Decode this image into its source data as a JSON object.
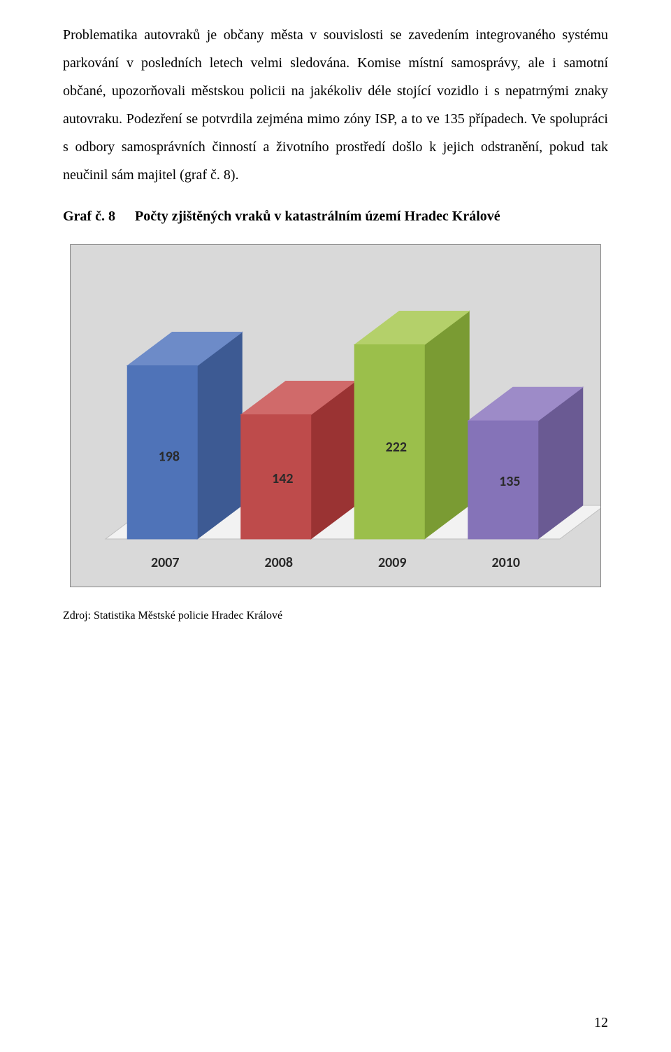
{
  "paragraph1": "Problematika autovraků je občany města v souvislosti se zavedením integrovaného systému parkování v posledních letech velmi sledována. Komise místní samosprávy, ale i samotní občané, upozorňovali městskou policii na jakékoliv déle stojící vozidlo i s nepatrnými znaky autovraku. Podezření se potvrdila zejména mimo zóny ISP, a to ve 135 případech. Ve spolupráci s odbory samosprávních činností a životního prostředí došlo k jejich odstranění, pokud tak neučinil sám majitel (graf č. 8).",
  "graf_label": "Graf č. 8",
  "chart_title": "Počty zjištěných vraků v katastrálním území Hradec Králové",
  "source_text": "Zdroj: Statistika Městské policie Hradec Králové",
  "page_number": "12",
  "chart": {
    "type": "bar-3d",
    "background": "#d9d9d9",
    "floor_color": "#f2f2f2",
    "floor_edge": "#bfbfbf",
    "label_fontsize": 20,
    "label_color": "#2a2a2a",
    "categories": [
      "2007",
      "2008",
      "2009",
      "2010"
    ],
    "values": [
      198,
      142,
      222,
      135
    ],
    "ymax": 240,
    "bars": [
      {
        "top": "#6d8bc8",
        "front": "#4f73b8",
        "side": "#3d5a93"
      },
      {
        "top": "#d06a6a",
        "front": "#be4b4b",
        "side": "#9a3333"
      },
      {
        "top": "#b4d06a",
        "front": "#9bbf4b",
        "side": "#7a9b33"
      },
      {
        "top": "#9d8bc8",
        "front": "#8573b8",
        "side": "#6a5a93"
      }
    ]
  }
}
